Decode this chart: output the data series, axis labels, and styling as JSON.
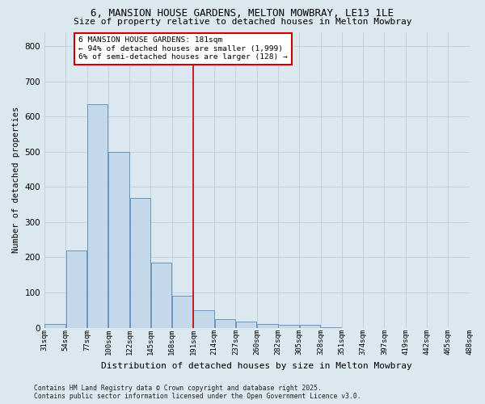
{
  "title": "6, MANSION HOUSE GARDENS, MELTON MOWBRAY, LE13 1LE",
  "subtitle": "Size of property relative to detached houses in Melton Mowbray",
  "xlabel": "Distribution of detached houses by size in Melton Mowbray",
  "ylabel": "Number of detached properties",
  "footer_line1": "Contains HM Land Registry data © Crown copyright and database right 2025.",
  "footer_line2": "Contains public sector information licensed under the Open Government Licence v3.0.",
  "annotation_line1": "6 MANSION HOUSE GARDENS: 181sqm",
  "annotation_line2": "← 94% of detached houses are smaller (1,999)",
  "annotation_line3": "6% of semi-detached houses are larger (128) →",
  "bin_labels": [
    "31sqm",
    "54sqm",
    "77sqm",
    "100sqm",
    "122sqm",
    "145sqm",
    "168sqm",
    "191sqm",
    "214sqm",
    "237sqm",
    "260sqm",
    "282sqm",
    "305sqm",
    "328sqm",
    "351sqm",
    "374sqm",
    "397sqm",
    "419sqm",
    "442sqm",
    "465sqm",
    "488sqm"
  ],
  "counts": [
    10,
    220,
    635,
    500,
    370,
    185,
    90,
    50,
    25,
    17,
    10,
    8,
    7,
    2,
    0,
    0,
    0,
    0,
    0,
    0
  ],
  "vline_bin": 6,
  "bar_color": "#c5d8ea",
  "bar_edge_color": "#5a8ab5",
  "vline_color": "#cc0000",
  "annotation_box_color": "#cc0000",
  "annotation_bg_color": "#ffffff",
  "grid_color": "#c0cdd8",
  "background_color": "#dce8f0",
  "ylim": [
    0,
    840
  ],
  "yticks": [
    0,
    100,
    200,
    300,
    400,
    500,
    600,
    700,
    800
  ],
  "title_fontsize": 9,
  "subtitle_fontsize": 8
}
